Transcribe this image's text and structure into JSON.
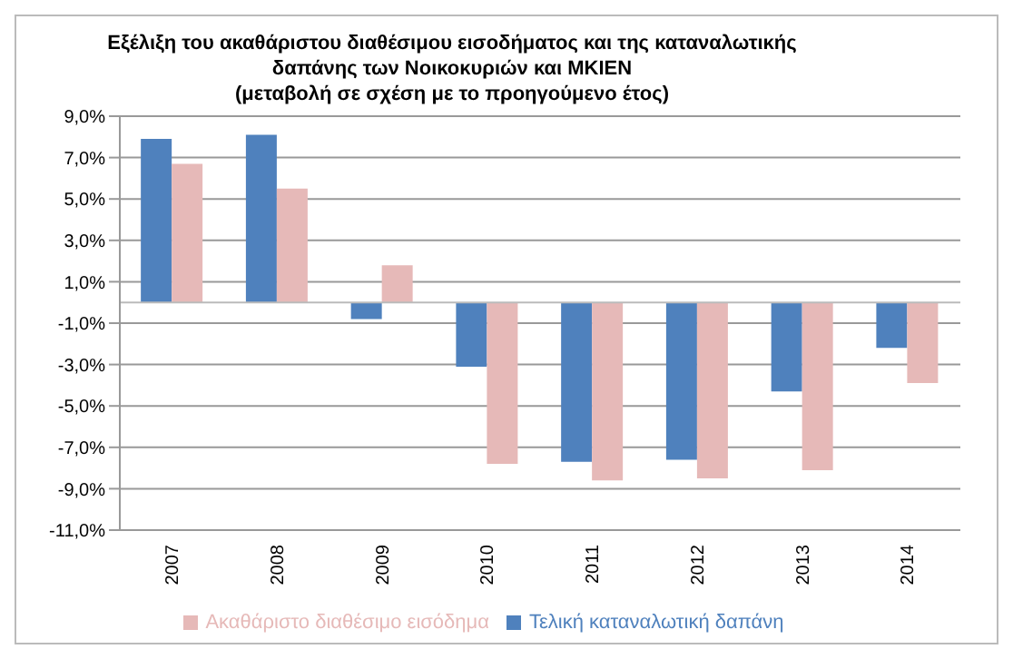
{
  "chart_data": {
    "type": "bar",
    "title": "Εξέλιξη του ακαθάριστου  διαθέσιμου εισοδήματος και της καταναλωτικής\nδαπάνης των Νοικοκυριών και ΜΚΙΕΝ\n(μεταβολή σε σχέση με το προηγούμενο έτος)",
    "categories": [
      "2007",
      "2008",
      "2009",
      "2010",
      "2011",
      "2012",
      "2013",
      "2014"
    ],
    "series": [
      {
        "name": "Τελική καταναλωτική δαπάνη",
        "color": "#4f81bd",
        "values": [
          7.9,
          8.1,
          -0.8,
          -3.1,
          -7.7,
          -7.6,
          -4.3,
          -2.2
        ]
      },
      {
        "name": "Ακαθάριστο διαθέσιμο εισόδημα",
        "color": "#e6b9b8",
        "values": [
          6.7,
          5.5,
          1.8,
          -7.8,
          -8.6,
          -8.5,
          -8.1,
          -3.9
        ]
      }
    ],
    "ylim": [
      -11,
      9
    ],
    "yticks": [
      {
        "value": 9,
        "label": "9,0%"
      },
      {
        "value": 7,
        "label": "7,0%"
      },
      {
        "value": 5,
        "label": "5,0%"
      },
      {
        "value": 3,
        "label": "3,0%"
      },
      {
        "value": 1,
        "label": "1,0%"
      },
      {
        "value": -1,
        "label": "-1,0%"
      },
      {
        "value": -3,
        "label": "-3,0%"
      },
      {
        "value": -5,
        "label": "-5,0%"
      },
      {
        "value": -7,
        "label": "-7,0%"
      },
      {
        "value": -9,
        "label": "-9,0%"
      },
      {
        "value": -11,
        "label": "-11,0%"
      }
    ],
    "grid": "y",
    "legend": "bottom"
  }
}
